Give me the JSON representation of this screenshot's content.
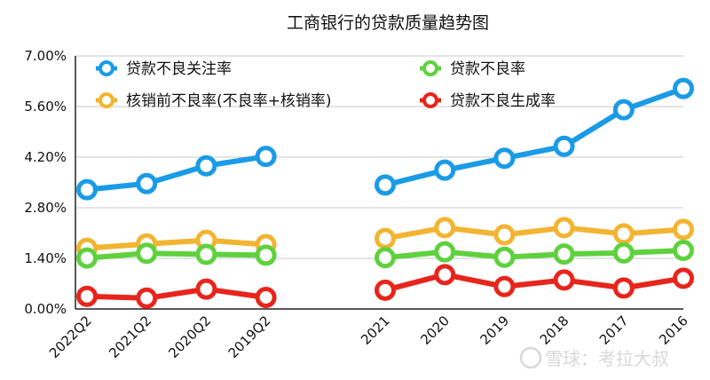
{
  "chart_data": {
    "type": "line",
    "title": "工商银行的贷款质量趋势图",
    "categories": [
      "2022Q2",
      "2021Q2",
      "2020Q2",
      "2019Q2",
      "",
      "2021",
      "2020",
      "2019",
      "2018",
      "2017",
      "2016"
    ],
    "yticks": [
      "0.00%",
      "1.40%",
      "2.80%",
      "4.20%",
      "5.60%",
      "7.00%"
    ],
    "ylim": [
      0,
      7.0
    ],
    "grid": true,
    "series": [
      {
        "name": "贷款不良关注率",
        "color": "#1a9be6",
        "values": [
          3.3,
          3.47,
          3.96,
          4.22,
          null,
          3.43,
          3.84,
          4.17,
          4.5,
          5.51,
          6.1
        ]
      },
      {
        "name": "贷款不良率",
        "color": "#5fd13e",
        "values": [
          1.41,
          1.54,
          1.51,
          1.49,
          null,
          1.42,
          1.58,
          1.43,
          1.52,
          1.55,
          1.62
        ]
      },
      {
        "name": "核销前不良率(不良率+核销率)",
        "color": "#f2b431",
        "values": [
          1.68,
          1.8,
          1.9,
          1.78,
          null,
          1.95,
          2.25,
          2.05,
          2.25,
          2.08,
          2.2
        ]
      },
      {
        "name": "贷款不良生成率",
        "color": "#e8251c",
        "values": [
          0.35,
          0.3,
          0.55,
          0.32,
          null,
          0.52,
          0.95,
          0.62,
          0.8,
          0.58,
          0.85
        ]
      }
    ]
  },
  "watermark": "雪球：考拉大叔"
}
